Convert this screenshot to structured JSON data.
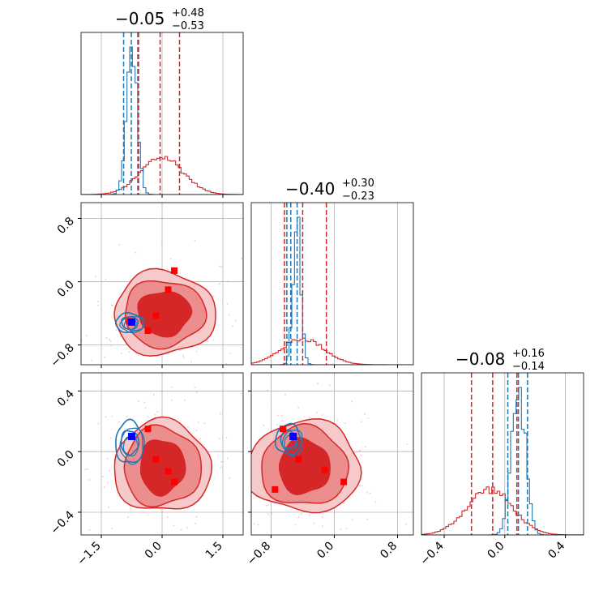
{
  "chart_data": {
    "type": "corner",
    "colors": {
      "series_a": "#d62728",
      "series_b": "#1f77b4",
      "marker_a": "#ff0000",
      "marker_b": "#0000ff",
      "grid": "#b0b0b0"
    },
    "parameters": [
      {
        "index": 0,
        "xlim": [
          -2.0,
          2.0
        ],
        "ticks": [
          -1.5,
          0.0,
          1.5
        ],
        "tick_labels": [
          "−1.5",
          "0.0",
          "1.5"
        ]
      },
      {
        "index": 1,
        "xlim": [
          -1.05,
          1.0
        ],
        "ticks": [
          -0.8,
          0.0,
          0.8
        ],
        "tick_labels": [
          "−0.8",
          "0.0",
          "0.8"
        ]
      },
      {
        "index": 2,
        "xlim": [
          -0.55,
          0.52
        ],
        "ticks": [
          -0.4,
          0.0,
          0.4
        ],
        "tick_labels": [
          "−0.4",
          "0.0",
          "0.4"
        ]
      }
    ],
    "titles": [
      {
        "value": "−0.05",
        "upper": "+0.48",
        "lower": "−0.53"
      },
      {
        "value": "−0.40",
        "upper": "+0.30",
        "lower": "−0.23"
      },
      {
        "value": "−0.08",
        "upper": "+0.16",
        "lower": "−0.14"
      }
    ],
    "marginals": [
      {
        "series_a": {
          "mean": 0.0,
          "sd": 0.52,
          "quantile_lines": [
            -0.58,
            -0.05,
            0.43
          ]
        },
        "series_b": {
          "mean": -0.75,
          "sd": 0.13,
          "quantile_lines": [
            -0.95,
            -0.76,
            -0.6
          ]
        }
      },
      {
        "series_a": {
          "mean": -0.4,
          "sd": 0.27,
          "quantile_lines": [
            -0.63,
            -0.4,
            -0.1
          ]
        },
        "series_b": {
          "mean": -0.47,
          "sd": 0.05,
          "quantile_lines": [
            -0.6,
            -0.55,
            -0.47
          ]
        }
      },
      {
        "series_a": {
          "mean": -0.1,
          "sd": 0.15,
          "quantile_lines": [
            -0.22,
            -0.08,
            0.08
          ]
        },
        "series_b": {
          "mean": 0.09,
          "sd": 0.045,
          "quantile_lines": [
            0.02,
            0.09,
            0.15
          ]
        }
      }
    ],
    "joint_panels": [
      {
        "x": 0,
        "y": 1,
        "series_a": {
          "center": [
            0.05,
            -0.4
          ],
          "levels": [
            [
              0.65,
              0.28
            ],
            [
              1.0,
              0.42
            ],
            [
              1.25,
              0.53
            ]
          ]
        },
        "series_b": {
          "center": [
            -0.8,
            -0.52
          ],
          "levels": [
            [
              0.2,
              0.08
            ],
            [
              0.35,
              0.12
            ]
          ]
        },
        "markers_a": [
          [
            0.3,
            0.14
          ],
          [
            0.15,
            -0.1
          ],
          [
            -0.15,
            -0.43
          ],
          [
            -0.35,
            -0.62
          ],
          [
            -0.8,
            -0.5
          ]
        ],
        "markers_b": [
          [
            -0.75,
            -0.51
          ]
        ]
      },
      {
        "x": 0,
        "y": 2,
        "series_a": {
          "center": [
            0.0,
            -0.1
          ],
          "levels": [
            [
              0.55,
              0.18
            ],
            [
              0.95,
              0.26
            ],
            [
              1.2,
              0.3
            ]
          ]
        },
        "series_b": {
          "center": [
            -0.8,
            0.06
          ],
          "levels": [
            [
              0.22,
              0.08
            ],
            [
              0.35,
              0.14
            ]
          ]
        },
        "markers_a": [
          [
            -0.35,
            0.15
          ],
          [
            -0.15,
            -0.05
          ],
          [
            0.15,
            -0.13
          ],
          [
            0.3,
            -0.2
          ]
        ],
        "markers_b": [
          [
            -0.75,
            0.1
          ]
        ]
      },
      {
        "x": 1,
        "y": 2,
        "series_a": {
          "center": [
            -0.38,
            -0.1
          ],
          "levels": [
            [
              0.32,
              0.18
            ],
            [
              0.55,
              0.26
            ],
            [
              0.72,
              0.3
            ]
          ]
        },
        "series_b": {
          "center": [
            -0.58,
            0.08
          ],
          "levels": [
            [
              0.1,
              0.06
            ],
            [
              0.16,
              0.1
            ]
          ]
        },
        "markers_a": [
          [
            -0.65,
            0.15
          ],
          [
            -0.45,
            -0.05
          ],
          [
            -0.12,
            -0.12
          ],
          [
            0.12,
            -0.2
          ],
          [
            -0.75,
            -0.25
          ]
        ],
        "markers_b": [
          [
            -0.52,
            0.1
          ]
        ]
      }
    ]
  }
}
